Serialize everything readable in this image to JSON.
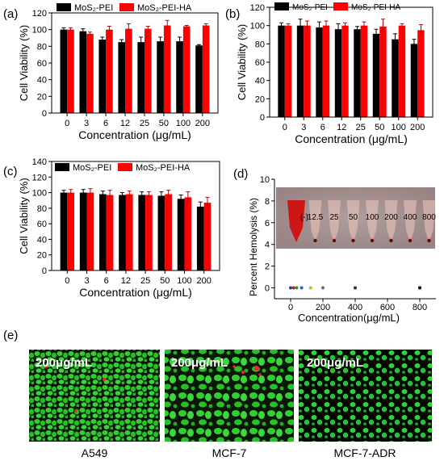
{
  "chart_data": [
    {
      "panel": "(a)",
      "type": "bar",
      "xlabel": "Concentration (μg/mL)",
      "ylabel": "Cell Viability (%)",
      "ylim": [
        0,
        120
      ],
      "yticks": [
        0,
        20,
        40,
        60,
        80,
        100,
        120
      ],
      "categories": [
        "0",
        "3",
        "6",
        "12",
        "25",
        "50",
        "100",
        "200"
      ],
      "series": [
        {
          "name": "MoS₂-PEI",
          "color": "#000000",
          "values": [
            100,
            98,
            88,
            85,
            85,
            86,
            86,
            81
          ],
          "errors": [
            2,
            3,
            3,
            3,
            6,
            5,
            5,
            1
          ]
        },
        {
          "name": "MoS₂-PEI-HA",
          "color": "#ff0000",
          "values": [
            100,
            95,
            100,
            101,
            101,
            105,
            104,
            105
          ],
          "errors": [
            2,
            2,
            4,
            6,
            3,
            6,
            1,
            2
          ]
        }
      ],
      "legend": "top"
    },
    {
      "panel": "(b)",
      "type": "bar",
      "xlabel": "Concentration (μg/mL)",
      "ylabel": "Cell Viability (%)",
      "ylim": [
        0,
        120
      ],
      "yticks": [
        0,
        20,
        40,
        60,
        80,
        100,
        120
      ],
      "categories": [
        "0",
        "3",
        "6",
        "12",
        "25",
        "50",
        "100",
        "200"
      ],
      "series": [
        {
          "name": "MoS₂-PEI",
          "color": "#000000",
          "values": [
            100,
            100,
            98,
            96,
            96,
            91,
            85,
            80
          ],
          "errors": [
            3,
            7,
            6,
            6,
            3,
            5,
            6,
            5
          ]
        },
        {
          "name": "MoS₂-PEI-HA",
          "color": "#ff0000",
          "values": [
            100,
            100,
            100,
            100,
            100,
            99,
            100,
            95
          ],
          "errors": [
            2,
            5,
            5,
            3,
            4,
            8,
            2,
            6
          ]
        }
      ],
      "legend": "top"
    },
    {
      "panel": "(c)",
      "type": "bar",
      "xlabel": "Concentration (μg/mL)",
      "ylabel": "Cell Viability (%)",
      "ylim": [
        0,
        140
      ],
      "yticks": [
        0,
        20,
        40,
        60,
        80,
        100,
        120,
        140
      ],
      "categories": [
        "0",
        "3",
        "6",
        "12",
        "25",
        "50",
        "100",
        "200"
      ],
      "series": [
        {
          "name": "MoS₂-PEI",
          "color": "#000000",
          "values": [
            100,
            100,
            98,
            97,
            97,
            96,
            92,
            82
          ],
          "errors": [
            3,
            4,
            4,
            3,
            4,
            5,
            5,
            6
          ]
        },
        {
          "name": "MoS₂-PEI-HA",
          "color": "#ff0000",
          "values": [
            100,
            100,
            97,
            98,
            97,
            98,
            94,
            87
          ],
          "errors": [
            4,
            5,
            6,
            4,
            4,
            5,
            7,
            7
          ]
        }
      ],
      "legend": "top"
    },
    {
      "panel": "(d)",
      "type": "scatter",
      "xlabel": "Concentration(μg/mL)",
      "ylabel": "Percent Hemolysis (%)",
      "xlim": [
        -100,
        900
      ],
      "xticks": [
        0,
        200,
        400,
        600,
        800
      ],
      "ylim": [
        -1,
        10
      ],
      "yticks": [
        0,
        2,
        4,
        6,
        8,
        10
      ],
      "x": [
        0,
        12.5,
        25,
        50,
        100,
        200,
        400,
        800
      ],
      "y": [
        0,
        0,
        0,
        0,
        0,
        0,
        0,
        0
      ],
      "point_colors": [
        "#1f3fbf",
        "#d02020",
        "#20a020",
        "#2060e0",
        "#c0c020",
        "#707070",
        "#303030",
        "#000000"
      ],
      "inset_labels": [
        "(-)",
        "12.5",
        "25",
        "50",
        "100",
        "200",
        "400",
        "800"
      ]
    }
  ],
  "micrographs": {
    "items": [
      {
        "dose": "200μg/mL",
        "caption": "A549"
      },
      {
        "dose": "200μg/mL",
        "caption": "MCF-7"
      },
      {
        "dose": "200μg/mL",
        "caption": "MCF-7-ADR"
      }
    ]
  },
  "panel_labels": {
    "a": "(a)",
    "b": "(b)",
    "c": "(c)",
    "d": "(d)",
    "e": "(e)"
  },
  "colors": {
    "cell_green": "#22c922",
    "dead_red": "#ff2020",
    "bg_dark": "#0a1a08",
    "inset_bg": "#5a5a5a"
  }
}
